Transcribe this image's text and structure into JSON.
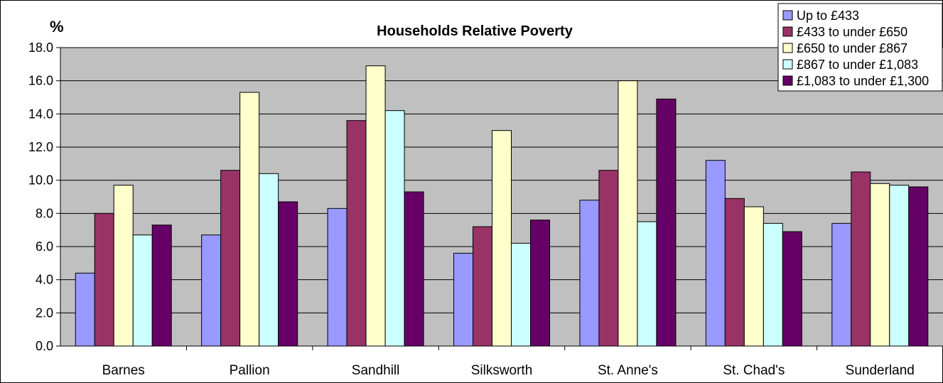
{
  "chart_data": {
    "type": "bar",
    "title": "Households Relative Poverty",
    "ylabel": "%",
    "xlabel": "",
    "ylim": [
      0,
      18
    ],
    "yticks": [
      "0.0",
      "2.0",
      "4.0",
      "6.0",
      "8.0",
      "10.0",
      "12.0",
      "14.0",
      "16.0",
      "18.0"
    ],
    "grid": true,
    "legend_position": "top-right",
    "categories": [
      "Barnes",
      "Pallion",
      "Sandhill",
      "Silksworth",
      "St. Anne's",
      "St. Chad's",
      "Sunderland"
    ],
    "series": [
      {
        "name": "Up to £433",
        "color": "#9999ff",
        "values": [
          4.4,
          6.7,
          8.3,
          5.6,
          8.8,
          11.2,
          7.4
        ]
      },
      {
        "name": "£433 to under £650",
        "color": "#993366",
        "values": [
          8.0,
          10.6,
          13.6,
          7.2,
          10.6,
          8.9,
          10.5
        ]
      },
      {
        "name": "£650 to under £867",
        "color": "#ffffcc",
        "values": [
          9.7,
          15.3,
          16.9,
          13.0,
          16.0,
          8.4,
          9.8
        ]
      },
      {
        "name": "£867 to under £1,083",
        "color": "#ccffff",
        "values": [
          6.7,
          10.4,
          14.2,
          6.2,
          7.5,
          7.4,
          9.7
        ]
      },
      {
        "name": "£1,083 to under £1,300",
        "color": "#660066",
        "values": [
          7.3,
          8.7,
          9.3,
          7.6,
          14.9,
          6.9,
          9.6
        ]
      }
    ],
    "plot_background": "#c0c0c0",
    "gridline_color": "#000000"
  }
}
